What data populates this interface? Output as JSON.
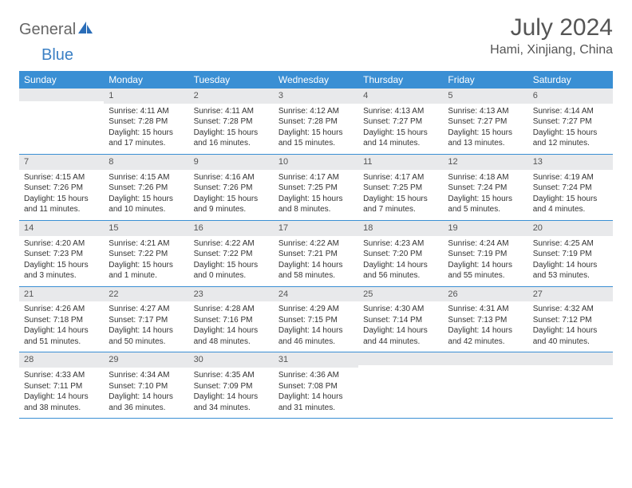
{
  "logo": {
    "part1": "General",
    "part2": "Blue"
  },
  "title": "July 2024",
  "location": "Hami, Xinjiang, China",
  "colors": {
    "header_bg": "#3a8fd4",
    "header_fg": "#ffffff",
    "daynum_bg": "#e8e9eb",
    "rule": "#3a8fd4",
    "logo_gray": "#666666",
    "logo_blue": "#3a7fc4"
  },
  "day_headers": [
    "Sunday",
    "Monday",
    "Tuesday",
    "Wednesday",
    "Thursday",
    "Friday",
    "Saturday"
  ],
  "weeks": [
    [
      {
        "n": "",
        "sunrise": "",
        "sunset": "",
        "daylight": ""
      },
      {
        "n": "1",
        "sunrise": "Sunrise: 4:11 AM",
        "sunset": "Sunset: 7:28 PM",
        "daylight": "Daylight: 15 hours and 17 minutes."
      },
      {
        "n": "2",
        "sunrise": "Sunrise: 4:11 AM",
        "sunset": "Sunset: 7:28 PM",
        "daylight": "Daylight: 15 hours and 16 minutes."
      },
      {
        "n": "3",
        "sunrise": "Sunrise: 4:12 AM",
        "sunset": "Sunset: 7:28 PM",
        "daylight": "Daylight: 15 hours and 15 minutes."
      },
      {
        "n": "4",
        "sunrise": "Sunrise: 4:13 AM",
        "sunset": "Sunset: 7:27 PM",
        "daylight": "Daylight: 15 hours and 14 minutes."
      },
      {
        "n": "5",
        "sunrise": "Sunrise: 4:13 AM",
        "sunset": "Sunset: 7:27 PM",
        "daylight": "Daylight: 15 hours and 13 minutes."
      },
      {
        "n": "6",
        "sunrise": "Sunrise: 4:14 AM",
        "sunset": "Sunset: 7:27 PM",
        "daylight": "Daylight: 15 hours and 12 minutes."
      }
    ],
    [
      {
        "n": "7",
        "sunrise": "Sunrise: 4:15 AM",
        "sunset": "Sunset: 7:26 PM",
        "daylight": "Daylight: 15 hours and 11 minutes."
      },
      {
        "n": "8",
        "sunrise": "Sunrise: 4:15 AM",
        "sunset": "Sunset: 7:26 PM",
        "daylight": "Daylight: 15 hours and 10 minutes."
      },
      {
        "n": "9",
        "sunrise": "Sunrise: 4:16 AM",
        "sunset": "Sunset: 7:26 PM",
        "daylight": "Daylight: 15 hours and 9 minutes."
      },
      {
        "n": "10",
        "sunrise": "Sunrise: 4:17 AM",
        "sunset": "Sunset: 7:25 PM",
        "daylight": "Daylight: 15 hours and 8 minutes."
      },
      {
        "n": "11",
        "sunrise": "Sunrise: 4:17 AM",
        "sunset": "Sunset: 7:25 PM",
        "daylight": "Daylight: 15 hours and 7 minutes."
      },
      {
        "n": "12",
        "sunrise": "Sunrise: 4:18 AM",
        "sunset": "Sunset: 7:24 PM",
        "daylight": "Daylight: 15 hours and 5 minutes."
      },
      {
        "n": "13",
        "sunrise": "Sunrise: 4:19 AM",
        "sunset": "Sunset: 7:24 PM",
        "daylight": "Daylight: 15 hours and 4 minutes."
      }
    ],
    [
      {
        "n": "14",
        "sunrise": "Sunrise: 4:20 AM",
        "sunset": "Sunset: 7:23 PM",
        "daylight": "Daylight: 15 hours and 3 minutes."
      },
      {
        "n": "15",
        "sunrise": "Sunrise: 4:21 AM",
        "sunset": "Sunset: 7:22 PM",
        "daylight": "Daylight: 15 hours and 1 minute."
      },
      {
        "n": "16",
        "sunrise": "Sunrise: 4:22 AM",
        "sunset": "Sunset: 7:22 PM",
        "daylight": "Daylight: 15 hours and 0 minutes."
      },
      {
        "n": "17",
        "sunrise": "Sunrise: 4:22 AM",
        "sunset": "Sunset: 7:21 PM",
        "daylight": "Daylight: 14 hours and 58 minutes."
      },
      {
        "n": "18",
        "sunrise": "Sunrise: 4:23 AM",
        "sunset": "Sunset: 7:20 PM",
        "daylight": "Daylight: 14 hours and 56 minutes."
      },
      {
        "n": "19",
        "sunrise": "Sunrise: 4:24 AM",
        "sunset": "Sunset: 7:19 PM",
        "daylight": "Daylight: 14 hours and 55 minutes."
      },
      {
        "n": "20",
        "sunrise": "Sunrise: 4:25 AM",
        "sunset": "Sunset: 7:19 PM",
        "daylight": "Daylight: 14 hours and 53 minutes."
      }
    ],
    [
      {
        "n": "21",
        "sunrise": "Sunrise: 4:26 AM",
        "sunset": "Sunset: 7:18 PM",
        "daylight": "Daylight: 14 hours and 51 minutes."
      },
      {
        "n": "22",
        "sunrise": "Sunrise: 4:27 AM",
        "sunset": "Sunset: 7:17 PM",
        "daylight": "Daylight: 14 hours and 50 minutes."
      },
      {
        "n": "23",
        "sunrise": "Sunrise: 4:28 AM",
        "sunset": "Sunset: 7:16 PM",
        "daylight": "Daylight: 14 hours and 48 minutes."
      },
      {
        "n": "24",
        "sunrise": "Sunrise: 4:29 AM",
        "sunset": "Sunset: 7:15 PM",
        "daylight": "Daylight: 14 hours and 46 minutes."
      },
      {
        "n": "25",
        "sunrise": "Sunrise: 4:30 AM",
        "sunset": "Sunset: 7:14 PM",
        "daylight": "Daylight: 14 hours and 44 minutes."
      },
      {
        "n": "26",
        "sunrise": "Sunrise: 4:31 AM",
        "sunset": "Sunset: 7:13 PM",
        "daylight": "Daylight: 14 hours and 42 minutes."
      },
      {
        "n": "27",
        "sunrise": "Sunrise: 4:32 AM",
        "sunset": "Sunset: 7:12 PM",
        "daylight": "Daylight: 14 hours and 40 minutes."
      }
    ],
    [
      {
        "n": "28",
        "sunrise": "Sunrise: 4:33 AM",
        "sunset": "Sunset: 7:11 PM",
        "daylight": "Daylight: 14 hours and 38 minutes."
      },
      {
        "n": "29",
        "sunrise": "Sunrise: 4:34 AM",
        "sunset": "Sunset: 7:10 PM",
        "daylight": "Daylight: 14 hours and 36 minutes."
      },
      {
        "n": "30",
        "sunrise": "Sunrise: 4:35 AM",
        "sunset": "Sunset: 7:09 PM",
        "daylight": "Daylight: 14 hours and 34 minutes."
      },
      {
        "n": "31",
        "sunrise": "Sunrise: 4:36 AM",
        "sunset": "Sunset: 7:08 PM",
        "daylight": "Daylight: 14 hours and 31 minutes."
      },
      {
        "n": "",
        "sunrise": "",
        "sunset": "",
        "daylight": ""
      },
      {
        "n": "",
        "sunrise": "",
        "sunset": "",
        "daylight": ""
      },
      {
        "n": "",
        "sunrise": "",
        "sunset": "",
        "daylight": ""
      }
    ]
  ]
}
